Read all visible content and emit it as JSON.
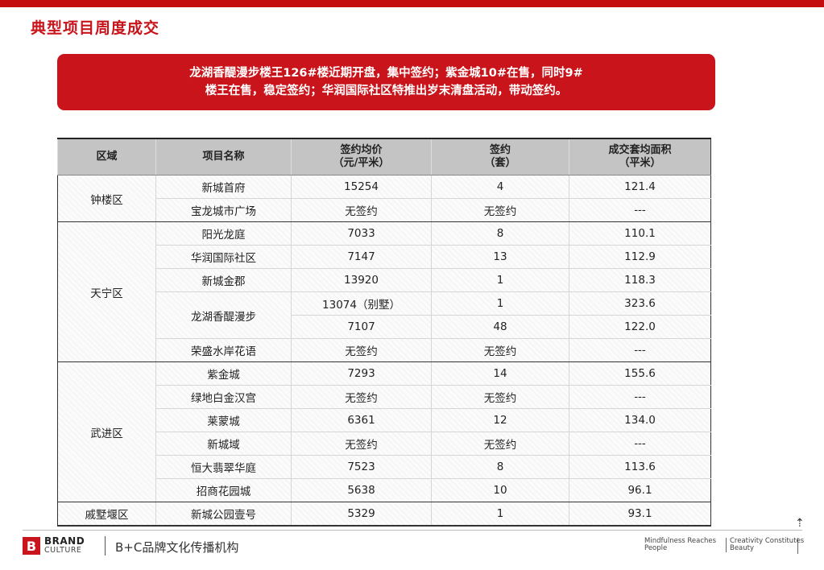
{
  "page": {
    "title": "典型项目周度成交",
    "banner_line1": "龙湖香醍漫步楼王126#楼近期开盘，集中签约；紫金城10#在售，同时9#",
    "banner_line2": "楼王在售，稳定签约；华润国际社区特推出岁末清盘活动，带动签约。"
  },
  "table": {
    "headers": {
      "district": "区域",
      "project": "项目名称",
      "price_l1": "签约均价",
      "price_l2": "（元/平米）",
      "units_l1": "签约",
      "units_l2": "（套）",
      "area_l1": "成交套均面积",
      "area_l2": "（平米）"
    },
    "districts": [
      "钟楼区",
      "天宁区",
      "武进区",
      "戚墅堰区"
    ],
    "rows": [
      {
        "project": "新城首府",
        "price": "15254",
        "units": "4",
        "area": "121.4"
      },
      {
        "project": "宝龙城市广场",
        "price": "无签约",
        "units": "无签约",
        "area": "---"
      },
      {
        "project": "阳光龙庭",
        "price": "7033",
        "units": "8",
        "area": "110.1"
      },
      {
        "project": "华润国际社区",
        "price": "7147",
        "units": "13",
        "area": "112.9"
      },
      {
        "project": "新城金郡",
        "price": "13920",
        "units": "1",
        "area": "118.3"
      },
      {
        "project": "龙湖香醍漫步",
        "price": "13074（别墅）",
        "units": "1",
        "area": "323.6"
      },
      {
        "project": "",
        "price": "7107",
        "units": "48",
        "area": "122.0"
      },
      {
        "project": "荣盛水岸花语",
        "price": "无签约",
        "units": "无签约",
        "area": "---"
      },
      {
        "project": "紫金城",
        "price": "7293",
        "units": "14",
        "area": "155.6"
      },
      {
        "project": "绿地白金汉宫",
        "price": "无签约",
        "units": "无签约",
        "area": "---"
      },
      {
        "project": "莱蒙城",
        "price": "6361",
        "units": "12",
        "area": "134.0"
      },
      {
        "project": "新城域",
        "price": "无签约",
        "units": "无签约",
        "area": "---"
      },
      {
        "project": "恒大翡翠华庭",
        "price": "7523",
        "units": "8",
        "area": "113.6"
      },
      {
        "project": "招商花园城",
        "price": "5638",
        "units": "10",
        "area": "96.1"
      },
      {
        "project": "新城公园壹号",
        "price": "5329",
        "units": "1",
        "area": "93.1"
      }
    ]
  },
  "footer": {
    "logo_mark": "B",
    "logo_brand": "BRAND",
    "logo_culture": "CULTURE",
    "company": "B+C品牌文化传播机构",
    "slogan_a1": "Mindfulness Reaches",
    "slogan_a2": "People",
    "slogan_b1": "Creativity Constitutes",
    "slogan_b2": "Beauty"
  },
  "colors": {
    "brand_red": "#c8141a",
    "header_gray": "#c4c4c4"
  },
  "icons": {
    "corner": "up-arrow-icon"
  }
}
